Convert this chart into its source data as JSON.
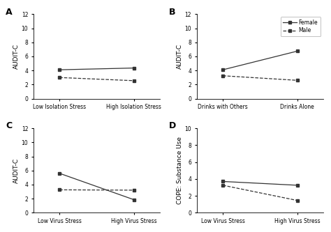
{
  "panels": [
    {
      "label": "A",
      "xtick_labels": [
        "Low Isolation Stress",
        "High Isolation Stress"
      ],
      "ylabel": "AUDIT-C",
      "ylim": [
        0,
        12
      ],
      "yticks": [
        0,
        2,
        4,
        6,
        8,
        10,
        12
      ],
      "female": [
        4.1,
        4.35
      ],
      "male": [
        3.0,
        2.55
      ],
      "legend": false
    },
    {
      "label": "B",
      "xtick_labels": [
        "Drinks with Others",
        "Drinks Alone"
      ],
      "ylabel": "AUDIT-C",
      "ylim": [
        0,
        12
      ],
      "yticks": [
        0,
        2,
        4,
        6,
        8,
        10,
        12
      ],
      "female": [
        4.1,
        6.75
      ],
      "male": [
        3.25,
        2.6
      ],
      "legend": true
    },
    {
      "label": "C",
      "xtick_labels": [
        "Low Virus Stress",
        "High Virus Stress"
      ],
      "ylabel": "AUDIT-C",
      "ylim": [
        0,
        12
      ],
      "yticks": [
        0,
        2,
        4,
        6,
        8,
        10,
        12
      ],
      "female": [
        5.6,
        1.85
      ],
      "male": [
        3.25,
        3.2
      ],
      "legend": false
    },
    {
      "label": "D",
      "xtick_labels": [
        "Low Virus Stress",
        "High Virus Stress"
      ],
      "ylabel": "COPE: Substance Use",
      "ylim": [
        0,
        10
      ],
      "yticks": [
        0,
        2,
        4,
        6,
        8,
        10
      ],
      "female": [
        3.7,
        3.25
      ],
      "male": [
        3.25,
        1.45
      ],
      "legend": false
    }
  ],
  "line_color": "#333333",
  "marker": "s",
  "female_linestyle": "-",
  "male_linestyle": "--",
  "linewidth": 0.9,
  "markersize": 3.5,
  "label_fontsize": 6.5,
  "tick_fontsize": 5.5,
  "ylabel_fontsize": 6.5,
  "panel_label_fontsize": 9
}
